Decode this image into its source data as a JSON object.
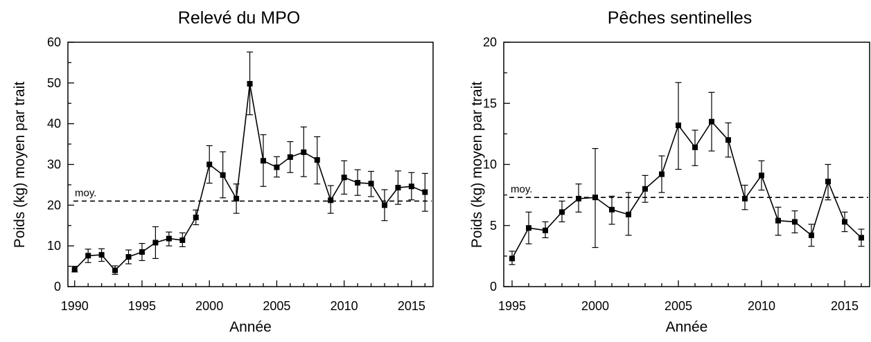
{
  "chart_data": [
    {
      "type": "line",
      "title": "Relevé du MPO",
      "xlabel": "Année",
      "ylabel": "Poids (kg) moyen par trait",
      "xlim": [
        1989.5,
        2016.6
      ],
      "ylim": [
        0,
        60
      ],
      "xticks": [
        1990,
        1995,
        2000,
        2005,
        2010,
        2015
      ],
      "yticks": [
        0,
        10,
        20,
        30,
        40,
        50,
        60
      ],
      "grid": false,
      "error_bars": true,
      "mean_line": {
        "label": "moy.",
        "value": 21
      },
      "series": [
        {
          "x": [
            1990,
            1991,
            1992,
            1993,
            1994,
            1995,
            1996,
            1997,
            1998,
            1999,
            2000,
            2001,
            2002,
            2003,
            2004,
            2005,
            2006,
            2007,
            2008,
            2009,
            2010,
            2011,
            2012,
            2013,
            2014,
            2015,
            2016
          ],
          "values": [
            4.2,
            7.6,
            7.8,
            4.0,
            7.3,
            8.5,
            10.8,
            11.8,
            11.4,
            17.0,
            30.0,
            27.4,
            21.6,
            49.8,
            30.9,
            29.3,
            31.8,
            33.0,
            31.1,
            21.2,
            26.8,
            25.5,
            25.3,
            20.0,
            24.3,
            24.6,
            23.2
          ],
          "lower": [
            3.6,
            5.9,
            6.2,
            3.0,
            5.6,
            6.4,
            6.9,
            10.0,
            9.8,
            15.2,
            25.4,
            21.8,
            18.0,
            42.2,
            24.6,
            26.9,
            28.0,
            27.0,
            25.2,
            18.0,
            22.7,
            22.4,
            22.1,
            16.2,
            20.2,
            21.3,
            18.5
          ],
          "upper": [
            5.0,
            9.2,
            9.3,
            5.1,
            9.0,
            10.6,
            14.7,
            13.4,
            13.2,
            18.8,
            34.6,
            33.1,
            25.2,
            57.6,
            37.3,
            31.9,
            35.6,
            39.2,
            36.8,
            24.8,
            30.9,
            28.7,
            28.3,
            23.8,
            28.4,
            28.0,
            27.8
          ]
        }
      ]
    },
    {
      "type": "line",
      "title": "Pêches sentinelles",
      "xlabel": "Année",
      "ylabel": "Poids (kg) moyen par trait",
      "xlim": [
        1994.5,
        2016.5
      ],
      "ylim": [
        0,
        20
      ],
      "xticks": [
        1995,
        2000,
        2005,
        2010,
        2015
      ],
      "yticks": [
        0,
        5,
        10,
        15,
        20
      ],
      "grid": false,
      "error_bars": true,
      "mean_line": {
        "label": "moy.",
        "value": 7.3
      },
      "series": [
        {
          "x": [
            1995,
            1996,
            1997,
            1998,
            1999,
            2000,
            2001,
            2002,
            2003,
            2004,
            2005,
            2006,
            2007,
            2008,
            2009,
            2010,
            2011,
            2012,
            2013,
            2014,
            2015,
            2016
          ],
          "values": [
            2.3,
            4.8,
            4.6,
            6.1,
            7.2,
            7.3,
            6.3,
            5.9,
            8.0,
            9.2,
            13.2,
            11.4,
            13.5,
            12.0,
            7.2,
            9.1,
            5.4,
            5.3,
            4.2,
            8.6,
            5.3,
            4.0
          ],
          "lower": [
            1.8,
            3.5,
            4.0,
            5.3,
            6.1,
            3.2,
            5.1,
            4.2,
            6.9,
            7.7,
            9.6,
            9.9,
            11.1,
            10.6,
            6.3,
            7.9,
            4.2,
            4.4,
            3.3,
            7.1,
            4.5,
            3.3
          ],
          "upper": [
            2.9,
            6.1,
            5.3,
            7.0,
            8.4,
            11.3,
            7.4,
            7.7,
            9.1,
            10.7,
            16.7,
            12.8,
            15.9,
            13.4,
            8.3,
            10.3,
            6.5,
            6.2,
            5.1,
            10.0,
            6.1,
            4.7
          ]
        }
      ]
    }
  ]
}
